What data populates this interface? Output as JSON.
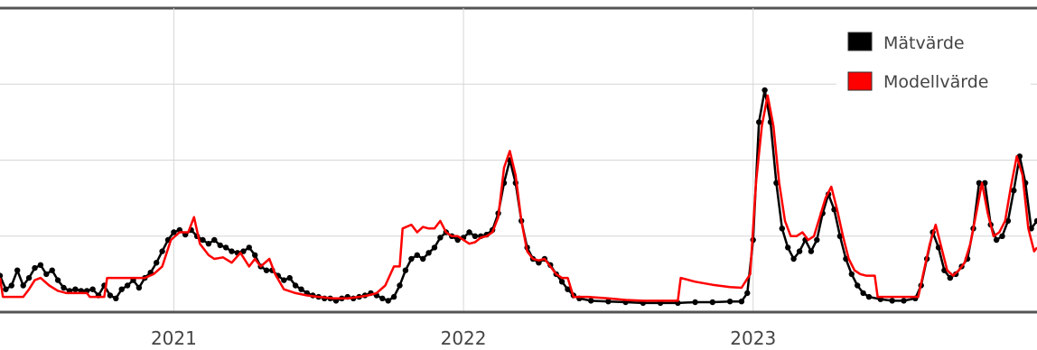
{
  "chart_data": {
    "type": "line",
    "title": "",
    "xlabel": "",
    "ylabel": "",
    "x_ticks": [
      {
        "label": "2021",
        "x": 2021.0
      },
      {
        "label": "2022",
        "x": 2022.0
      },
      {
        "label": "2023",
        "x": 2023.0
      }
    ],
    "xlim": [
      2020.4,
      2023.98
    ],
    "ylim": [
      0,
      4
    ],
    "grid": true,
    "legend_position": "top-right",
    "series": [
      {
        "name": "Mätvärde",
        "color": "#000000",
        "markers": true,
        "points": [
          [
            2020.4,
            0.48
          ],
          [
            2020.42,
            0.3
          ],
          [
            2020.44,
            0.35
          ],
          [
            2020.46,
            0.55
          ],
          [
            2020.48,
            0.35
          ],
          [
            2020.5,
            0.45
          ],
          [
            2020.52,
            0.58
          ],
          [
            2020.54,
            0.62
          ],
          [
            2020.56,
            0.5
          ],
          [
            2020.58,
            0.55
          ],
          [
            2020.6,
            0.42
          ],
          [
            2020.62,
            0.32
          ],
          [
            2020.64,
            0.28
          ],
          [
            2020.66,
            0.3
          ],
          [
            2020.68,
            0.28
          ],
          [
            2020.7,
            0.28
          ],
          [
            2020.72,
            0.3
          ],
          [
            2020.74,
            0.22
          ],
          [
            2020.76,
            0.35
          ],
          [
            2020.78,
            0.22
          ],
          [
            2020.8,
            0.18
          ],
          [
            2020.82,
            0.3
          ],
          [
            2020.84,
            0.35
          ],
          [
            2020.86,
            0.42
          ],
          [
            2020.88,
            0.32
          ],
          [
            2020.9,
            0.45
          ],
          [
            2020.92,
            0.52
          ],
          [
            2020.94,
            0.65
          ],
          [
            2020.96,
            0.8
          ],
          [
            2020.98,
            0.95
          ],
          [
            2021.0,
            1.05
          ],
          [
            2021.02,
            1.08
          ],
          [
            2021.04,
            1.02
          ],
          [
            2021.06,
            1.08
          ],
          [
            2021.08,
            1.0
          ],
          [
            2021.1,
            0.95
          ],
          [
            2021.12,
            0.9
          ],
          [
            2021.14,
            0.95
          ],
          [
            2021.16,
            0.88
          ],
          [
            2021.18,
            0.85
          ],
          [
            2021.2,
            0.8
          ],
          [
            2021.22,
            0.78
          ],
          [
            2021.24,
            0.8
          ],
          [
            2021.26,
            0.85
          ],
          [
            2021.28,
            0.75
          ],
          [
            2021.3,
            0.6
          ],
          [
            2021.32,
            0.55
          ],
          [
            2021.34,
            0.55
          ],
          [
            2021.36,
            0.48
          ],
          [
            2021.38,
            0.42
          ],
          [
            2021.4,
            0.45
          ],
          [
            2021.42,
            0.35
          ],
          [
            2021.44,
            0.3
          ],
          [
            2021.46,
            0.25
          ],
          [
            2021.48,
            0.22
          ],
          [
            2021.5,
            0.2
          ],
          [
            2021.52,
            0.18
          ],
          [
            2021.54,
            0.18
          ],
          [
            2021.56,
            0.15
          ],
          [
            2021.58,
            0.18
          ],
          [
            2021.6,
            0.2
          ],
          [
            2021.62,
            0.18
          ],
          [
            2021.64,
            0.2
          ],
          [
            2021.66,
            0.22
          ],
          [
            2021.68,
            0.25
          ],
          [
            2021.7,
            0.22
          ],
          [
            2021.72,
            0.18
          ],
          [
            2021.74,
            0.15
          ],
          [
            2021.76,
            0.2
          ],
          [
            2021.78,
            0.35
          ],
          [
            2021.8,
            0.55
          ],
          [
            2021.82,
            0.7
          ],
          [
            2021.84,
            0.75
          ],
          [
            2021.86,
            0.7
          ],
          [
            2021.88,
            0.78
          ],
          [
            2021.9,
            0.85
          ],
          [
            2021.92,
            0.98
          ],
          [
            2021.94,
            1.05
          ],
          [
            2021.96,
            1.0
          ],
          [
            2021.98,
            0.95
          ],
          [
            2022.0,
            0.98
          ],
          [
            2022.02,
            1.05
          ],
          [
            2022.04,
            1.0
          ],
          [
            2022.06,
            1.0
          ],
          [
            2022.08,
            1.02
          ],
          [
            2022.1,
            1.08
          ],
          [
            2022.12,
            1.3
          ],
          [
            2022.14,
            1.7
          ],
          [
            2022.16,
            2.0
          ],
          [
            2022.18,
            1.7
          ],
          [
            2022.2,
            1.2
          ],
          [
            2022.22,
            0.85
          ],
          [
            2022.24,
            0.7
          ],
          [
            2022.26,
            0.65
          ],
          [
            2022.28,
            0.7
          ],
          [
            2022.3,
            0.62
          ],
          [
            2022.32,
            0.5
          ],
          [
            2022.34,
            0.4
          ],
          [
            2022.36,
            0.3
          ],
          [
            2022.38,
            0.22
          ],
          [
            2022.4,
            0.18
          ],
          [
            2022.44,
            0.15
          ],
          [
            2022.5,
            0.14
          ],
          [
            2022.56,
            0.13
          ],
          [
            2022.62,
            0.12
          ],
          [
            2022.68,
            0.12
          ],
          [
            2022.74,
            0.12
          ],
          [
            2022.8,
            0.13
          ],
          [
            2022.86,
            0.13
          ],
          [
            2022.92,
            0.14
          ],
          [
            2022.96,
            0.14
          ],
          [
            2022.98,
            0.25
          ],
          [
            2023.0,
            0.95
          ],
          [
            2023.02,
            2.5
          ],
          [
            2023.04,
            2.92
          ],
          [
            2023.06,
            2.5
          ],
          [
            2023.08,
            1.7
          ],
          [
            2023.1,
            1.1
          ],
          [
            2023.12,
            0.85
          ],
          [
            2023.14,
            0.7
          ],
          [
            2023.16,
            0.8
          ],
          [
            2023.18,
            0.95
          ],
          [
            2023.2,
            0.8
          ],
          [
            2023.22,
            0.95
          ],
          [
            2023.24,
            1.3
          ],
          [
            2023.26,
            1.55
          ],
          [
            2023.28,
            1.35
          ],
          [
            2023.3,
            1.0
          ],
          [
            2023.32,
            0.7
          ],
          [
            2023.34,
            0.5
          ],
          [
            2023.36,
            0.35
          ],
          [
            2023.38,
            0.25
          ],
          [
            2023.4,
            0.2
          ],
          [
            2023.44,
            0.17
          ],
          [
            2023.48,
            0.15
          ],
          [
            2023.52,
            0.15
          ],
          [
            2023.56,
            0.18
          ],
          [
            2023.58,
            0.35
          ],
          [
            2023.6,
            0.7
          ],
          [
            2023.62,
            1.05
          ],
          [
            2023.64,
            0.85
          ],
          [
            2023.66,
            0.55
          ],
          [
            2023.68,
            0.45
          ],
          [
            2023.7,
            0.5
          ],
          [
            2023.72,
            0.6
          ],
          [
            2023.74,
            0.7
          ],
          [
            2023.76,
            1.1
          ],
          [
            2023.78,
            1.7
          ],
          [
            2023.8,
            1.7
          ],
          [
            2023.82,
            1.15
          ],
          [
            2023.84,
            0.95
          ],
          [
            2023.86,
            1.0
          ],
          [
            2023.88,
            1.2
          ],
          [
            2023.9,
            1.6
          ],
          [
            2023.92,
            2.05
          ],
          [
            2023.94,
            1.7
          ],
          [
            2023.96,
            1.1
          ],
          [
            2023.98,
            1.2
          ]
        ]
      },
      {
        "name": "Modellvärde",
        "color": "#ff0000",
        "markers": false,
        "points": [
          [
            2020.4,
            0.45
          ],
          [
            2020.41,
            0.2
          ],
          [
            2020.45,
            0.2
          ],
          [
            2020.48,
            0.2
          ],
          [
            2020.5,
            0.3
          ],
          [
            2020.52,
            0.42
          ],
          [
            2020.54,
            0.45
          ],
          [
            2020.57,
            0.35
          ],
          [
            2020.6,
            0.28
          ],
          [
            2020.63,
            0.25
          ],
          [
            2020.7,
            0.25
          ],
          [
            2020.71,
            0.2
          ],
          [
            2020.72,
            0.2
          ],
          [
            2020.74,
            0.2
          ],
          [
            2020.76,
            0.2
          ],
          [
            2020.77,
            0.45
          ],
          [
            2020.83,
            0.45
          ],
          [
            2020.9,
            0.45
          ],
          [
            2020.93,
            0.5
          ],
          [
            2020.96,
            0.6
          ],
          [
            2020.99,
            0.95
          ],
          [
            2021.02,
            1.05
          ],
          [
            2021.05,
            1.05
          ],
          [
            2021.07,
            1.25
          ],
          [
            2021.09,
            0.9
          ],
          [
            2021.12,
            0.75
          ],
          [
            2021.14,
            0.7
          ],
          [
            2021.17,
            0.72
          ],
          [
            2021.2,
            0.65
          ],
          [
            2021.23,
            0.78
          ],
          [
            2021.26,
            0.6
          ],
          [
            2021.28,
            0.7
          ],
          [
            2021.3,
            0.6
          ],
          [
            2021.33,
            0.7
          ],
          [
            2021.35,
            0.5
          ],
          [
            2021.38,
            0.3
          ],
          [
            2021.42,
            0.25
          ],
          [
            2021.46,
            0.22
          ],
          [
            2021.5,
            0.2
          ],
          [
            2021.55,
            0.18
          ],
          [
            2021.6,
            0.18
          ],
          [
            2021.64,
            0.2
          ],
          [
            2021.67,
            0.22
          ],
          [
            2021.7,
            0.25
          ],
          [
            2021.73,
            0.35
          ],
          [
            2021.76,
            0.6
          ],
          [
            2021.78,
            0.6
          ],
          [
            2021.79,
            1.1
          ],
          [
            2021.82,
            1.15
          ],
          [
            2021.84,
            1.05
          ],
          [
            2021.86,
            1.12
          ],
          [
            2021.88,
            1.1
          ],
          [
            2021.9,
            1.1
          ],
          [
            2021.92,
            1.2
          ],
          [
            2021.94,
            1.05
          ],
          [
            2021.96,
            1.0
          ],
          [
            2021.98,
            1.0
          ],
          [
            2022.0,
            0.95
          ],
          [
            2022.02,
            0.9
          ],
          [
            2022.04,
            0.92
          ],
          [
            2022.06,
            0.98
          ],
          [
            2022.08,
            1.0
          ],
          [
            2022.1,
            1.05
          ],
          [
            2022.12,
            1.25
          ],
          [
            2022.14,
            1.9
          ],
          [
            2022.16,
            2.12
          ],
          [
            2022.18,
            1.8
          ],
          [
            2022.2,
            1.2
          ],
          [
            2022.22,
            0.8
          ],
          [
            2022.24,
            0.7
          ],
          [
            2022.26,
            0.68
          ],
          [
            2022.28,
            0.7
          ],
          [
            2022.3,
            0.6
          ],
          [
            2022.32,
            0.5
          ],
          [
            2022.34,
            0.45
          ],
          [
            2022.36,
            0.45
          ],
          [
            2022.38,
            0.2
          ],
          [
            2022.43,
            0.2
          ],
          [
            2022.5,
            0.18
          ],
          [
            2022.56,
            0.16
          ],
          [
            2022.62,
            0.15
          ],
          [
            2022.68,
            0.15
          ],
          [
            2022.74,
            0.15
          ],
          [
            2022.75,
            0.45
          ],
          [
            2022.8,
            0.4
          ],
          [
            2022.86,
            0.36
          ],
          [
            2022.92,
            0.33
          ],
          [
            2022.96,
            0.32
          ],
          [
            2022.99,
            0.5
          ],
          [
            2023.01,
            1.7
          ],
          [
            2023.03,
            2.45
          ],
          [
            2023.05,
            2.85
          ],
          [
            2023.07,
            2.45
          ],
          [
            2023.09,
            1.7
          ],
          [
            2023.11,
            1.2
          ],
          [
            2023.13,
            1.0
          ],
          [
            2023.15,
            1.0
          ],
          [
            2023.17,
            1.05
          ],
          [
            2023.19,
            0.95
          ],
          [
            2023.21,
            1.0
          ],
          [
            2023.23,
            1.25
          ],
          [
            2023.25,
            1.5
          ],
          [
            2023.27,
            1.65
          ],
          [
            2023.29,
            1.35
          ],
          [
            2023.31,
            1.0
          ],
          [
            2023.33,
            0.7
          ],
          [
            2023.35,
            0.55
          ],
          [
            2023.37,
            0.5
          ],
          [
            2023.39,
            0.48
          ],
          [
            2023.42,
            0.48
          ],
          [
            2023.43,
            0.2
          ],
          [
            2023.5,
            0.2
          ],
          [
            2023.56,
            0.2
          ],
          [
            2023.57,
            0.2
          ],
          [
            2023.59,
            0.55
          ],
          [
            2023.61,
            0.9
          ],
          [
            2023.63,
            1.15
          ],
          [
            2023.65,
            0.85
          ],
          [
            2023.67,
            0.55
          ],
          [
            2023.69,
            0.48
          ],
          [
            2023.71,
            0.55
          ],
          [
            2023.73,
            0.65
          ],
          [
            2023.75,
            0.9
          ],
          [
            2023.77,
            1.3
          ],
          [
            2023.79,
            1.7
          ],
          [
            2023.81,
            1.3
          ],
          [
            2023.83,
            1.0
          ],
          [
            2023.85,
            1.05
          ],
          [
            2023.87,
            1.2
          ],
          [
            2023.89,
            1.65
          ],
          [
            2023.91,
            2.05
          ],
          [
            2023.93,
            1.8
          ],
          [
            2023.95,
            1.1
          ],
          [
            2023.97,
            0.8
          ],
          [
            2023.98,
            0.85
          ]
        ]
      }
    ]
  }
}
